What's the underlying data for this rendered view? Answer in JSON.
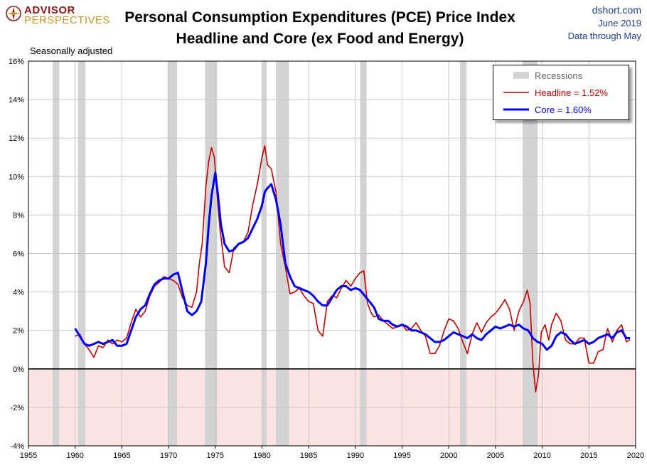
{
  "header": {
    "logo_text_1": "ADVISOR",
    "logo_text_2": "PERSPECTIVES",
    "title_line1": "Personal Consumption Expenditures (PCE) Price Index",
    "title_line2": "Headline and Core (ex Food and Energy)",
    "source_site": "dshort.com",
    "source_date": "June 2019",
    "source_note": "Data through May"
  },
  "note": "Seasonally adjusted",
  "colors": {
    "headline": "#c00000",
    "core": "#0000ee",
    "recession": "#d3d3d3",
    "negative_zone": "#fde4e4",
    "grid": "#c8c8c8",
    "logo_red": "#8b1a1a",
    "logo_gold": "#c49a2c"
  },
  "legend": {
    "items": [
      {
        "label": "Recessions",
        "kind": "recession"
      },
      {
        "label": "Headline = 1.52%",
        "kind": "headline"
      },
      {
        "label": "Core = 1.60%",
        "kind": "core"
      }
    ]
  },
  "chart_data": {
    "type": "line",
    "title": "Personal Consumption Expenditures (PCE) Price Index",
    "subtitle": "Headline and Core (ex Food and Energy)",
    "xlabel": "",
    "ylabel": "",
    "xlim": [
      1955,
      2020
    ],
    "ylim": [
      -4,
      16
    ],
    "x_ticks": [
      1955,
      1960,
      1965,
      1970,
      1975,
      1980,
      1985,
      1990,
      1995,
      2000,
      2005,
      2010,
      2015,
      2020
    ],
    "y_ticks": [
      -4,
      -2,
      0,
      2,
      4,
      6,
      8,
      10,
      12,
      14,
      16
    ],
    "y_tick_suffix": "%",
    "grid": true,
    "legend_position": "top-right",
    "recessions": [
      [
        1957.6,
        1958.3
      ],
      [
        1960.3,
        1961.1
      ],
      [
        1969.9,
        1970.9
      ],
      [
        1973.9,
        1975.2
      ],
      [
        1980.0,
        1980.5
      ],
      [
        1981.5,
        1982.9
      ],
      [
        1990.5,
        1991.2
      ],
      [
        2001.2,
        2001.9
      ],
      [
        2007.9,
        2009.5
      ]
    ],
    "series": [
      {
        "name": "Headline",
        "x": [
          1960.0,
          1960.5,
          1961.0,
          1961.5,
          1962.0,
          1962.5,
          1963.0,
          1963.5,
          1964.0,
          1964.5,
          1965.0,
          1965.5,
          1966.0,
          1966.5,
          1967.0,
          1967.5,
          1968.0,
          1968.5,
          1969.0,
          1969.5,
          1970.0,
          1970.5,
          1971.0,
          1971.5,
          1972.0,
          1972.5,
          1973.0,
          1973.3,
          1973.6,
          1974.0,
          1974.3,
          1974.6,
          1974.9,
          1975.2,
          1975.5,
          1976.0,
          1976.5,
          1977.0,
          1977.5,
          1978.0,
          1978.5,
          1979.0,
          1979.5,
          1980.0,
          1980.3,
          1980.6,
          1981.0,
          1981.5,
          1982.0,
          1982.5,
          1983.0,
          1983.5,
          1984.0,
          1984.5,
          1985.0,
          1985.5,
          1986.0,
          1986.5,
          1987.0,
          1987.5,
          1988.0,
          1988.5,
          1989.0,
          1989.5,
          1990.0,
          1990.5,
          1990.9,
          1991.3,
          1991.7,
          1992.0,
          1992.5,
          1993.0,
          1993.5,
          1994.0,
          1994.5,
          1995.0,
          1995.5,
          1996.0,
          1996.5,
          1997.0,
          1997.5,
          1998.0,
          1998.5,
          1999.0,
          1999.5,
          2000.0,
          2000.5,
          2001.0,
          2001.5,
          2002.0,
          2002.5,
          2003.0,
          2003.5,
          2004.0,
          2004.5,
          2005.0,
          2005.5,
          2006.0,
          2006.5,
          2007.0,
          2007.5,
          2008.0,
          2008.4,
          2008.7,
          2009.0,
          2009.3,
          2009.6,
          2009.9,
          2010.3,
          2010.7,
          2011.0,
          2011.5,
          2012.0,
          2012.5,
          2013.0,
          2013.5,
          2014.0,
          2014.5,
          2015.0,
          2015.5,
          2016.0,
          2016.5,
          2017.0,
          2017.5,
          2018.0,
          2018.5,
          2019.0,
          2019.4
        ],
        "values": [
          1.7,
          1.8,
          1.3,
          1.0,
          0.6,
          1.2,
          1.1,
          1.5,
          1.3,
          1.5,
          1.4,
          1.6,
          2.4,
          3.1,
          2.7,
          3.0,
          3.8,
          4.3,
          4.5,
          4.8,
          4.7,
          4.6,
          4.4,
          3.7,
          3.3,
          3.2,
          4.0,
          5.5,
          6.5,
          9.5,
          10.8,
          11.5,
          11.0,
          9.0,
          7.3,
          5.3,
          5.0,
          6.3,
          6.5,
          6.6,
          7.1,
          8.5,
          9.6,
          11.0,
          11.6,
          10.6,
          10.4,
          9.2,
          6.5,
          5.3,
          3.9,
          4.0,
          4.2,
          3.8,
          3.5,
          3.4,
          2.0,
          1.7,
          3.5,
          3.8,
          3.7,
          4.2,
          4.6,
          4.3,
          4.7,
          5.0,
          5.1,
          3.4,
          2.9,
          2.7,
          2.8,
          2.5,
          2.3,
          2.1,
          2.2,
          2.3,
          2.0,
          2.1,
          2.4,
          2.0,
          1.7,
          0.8,
          0.8,
          1.2,
          2.0,
          2.6,
          2.5,
          2.1,
          1.4,
          0.8,
          1.8,
          2.4,
          1.9,
          2.4,
          2.7,
          2.9,
          3.2,
          3.6,
          3.1,
          2.0,
          3.0,
          3.5,
          4.1,
          3.4,
          0.3,
          -1.2,
          -0.3,
          1.9,
          2.3,
          1.5,
          2.3,
          2.9,
          2.5,
          1.5,
          1.3,
          1.3,
          1.6,
          1.6,
          0.3,
          0.3,
          0.9,
          1.0,
          2.1,
          1.4,
          2.0,
          2.3,
          1.4,
          1.52
        ]
      },
      {
        "name": "Core",
        "x": [
          1960.0,
          1960.5,
          1961.0,
          1961.5,
          1962.0,
          1962.5,
          1963.0,
          1963.5,
          1964.0,
          1964.5,
          1965.0,
          1965.5,
          1966.0,
          1966.5,
          1967.0,
          1967.5,
          1968.0,
          1968.5,
          1969.0,
          1969.5,
          1970.0,
          1970.5,
          1971.0,
          1971.5,
          1972.0,
          1972.5,
          1973.0,
          1973.5,
          1974.0,
          1974.3,
          1974.6,
          1975.0,
          1975.3,
          1975.6,
          1976.0,
          1976.5,
          1977.0,
          1977.5,
          1978.0,
          1978.5,
          1979.0,
          1979.5,
          1980.0,
          1980.3,
          1980.6,
          1981.0,
          1981.5,
          1982.0,
          1982.5,
          1983.0,
          1983.5,
          1984.0,
          1984.5,
          1985.0,
          1985.5,
          1986.0,
          1986.5,
          1987.0,
          1987.5,
          1988.0,
          1988.5,
          1989.0,
          1989.5,
          1990.0,
          1990.5,
          1991.0,
          1991.5,
          1992.0,
          1992.5,
          1993.0,
          1993.5,
          1994.0,
          1994.5,
          1995.0,
          1995.5,
          1996.0,
          1996.5,
          1997.0,
          1997.5,
          1998.0,
          1998.5,
          1999.0,
          1999.5,
          2000.0,
          2000.5,
          2001.0,
          2001.5,
          2002.0,
          2002.5,
          2003.0,
          2003.5,
          2004.0,
          2004.5,
          2005.0,
          2005.5,
          2006.0,
          2006.5,
          2007.0,
          2007.5,
          2008.0,
          2008.5,
          2009.0,
          2009.5,
          2010.0,
          2010.5,
          2011.0,
          2011.5,
          2012.0,
          2012.5,
          2013.0,
          2013.5,
          2014.0,
          2014.5,
          2015.0,
          2015.5,
          2016.0,
          2016.5,
          2017.0,
          2017.5,
          2018.0,
          2018.5,
          2019.0,
          2019.4
        ],
        "values": [
          2.1,
          1.7,
          1.3,
          1.2,
          1.3,
          1.4,
          1.3,
          1.4,
          1.5,
          1.2,
          1.2,
          1.3,
          2.0,
          2.7,
          3.1,
          3.3,
          3.9,
          4.4,
          4.6,
          4.7,
          4.7,
          4.9,
          5.0,
          4.0,
          3.0,
          2.8,
          3.0,
          3.5,
          5.5,
          7.5,
          9.0,
          10.2,
          9.0,
          7.5,
          6.5,
          6.1,
          6.2,
          6.5,
          6.6,
          6.8,
          7.3,
          7.8,
          8.5,
          9.2,
          9.4,
          9.6,
          8.8,
          7.5,
          5.5,
          4.8,
          4.3,
          4.2,
          4.1,
          4.0,
          3.8,
          3.5,
          3.3,
          3.3,
          3.7,
          4.1,
          4.3,
          4.3,
          4.1,
          4.2,
          4.1,
          3.8,
          3.5,
          3.2,
          2.6,
          2.5,
          2.5,
          2.3,
          2.2,
          2.3,
          2.2,
          2.0,
          2.0,
          1.9,
          1.8,
          1.6,
          1.4,
          1.4,
          1.5,
          1.7,
          1.9,
          1.8,
          1.7,
          1.6,
          1.8,
          1.6,
          1.5,
          1.8,
          2.0,
          2.2,
          2.1,
          2.2,
          2.3,
          2.2,
          2.3,
          2.1,
          2.0,
          1.6,
          1.4,
          1.3,
          1.0,
          1.2,
          1.7,
          1.9,
          1.8,
          1.5,
          1.3,
          1.4,
          1.5,
          1.3,
          1.4,
          1.6,
          1.7,
          1.8,
          1.6,
          1.9,
          2.0,
          1.6,
          1.6
        ]
      }
    ]
  }
}
